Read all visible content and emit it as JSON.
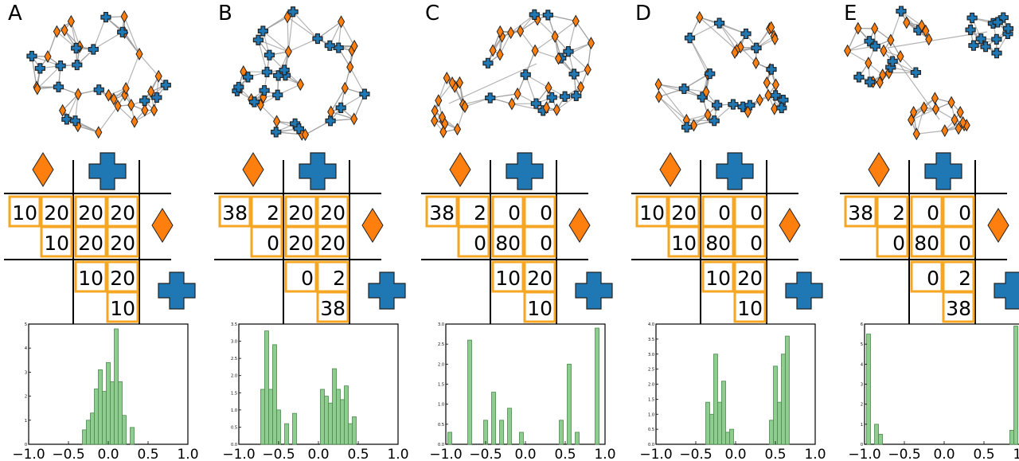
{
  "colors": {
    "orange": "#ff7f0e",
    "blue": "#1f77b4",
    "cell_border": "#f5a623",
    "hist_fill": "#8fcc8f",
    "hist_edge": "#4a8a4a",
    "edge": "#9a9a9a"
  },
  "icons": {
    "diamond": "orange-diamond-icon",
    "cross": "blue-cross-icon"
  },
  "panels": [
    {
      "label": "A",
      "matrix": {
        "dd": [
          "10",
          "20",
          "10"
        ],
        "dc": [
          "20",
          "20",
          "20",
          "20"
        ],
        "cc": [
          "10",
          "20",
          "10"
        ]
      },
      "network": {
        "groups": 1,
        "pattern": "mixed"
      },
      "hist": {
        "ymax": 5,
        "yticks": [
          "0",
          "1",
          "2",
          "3",
          "4",
          "5"
        ]
      }
    },
    {
      "label": "B",
      "matrix": {
        "dd": [
          "38",
          "2",
          "0"
        ],
        "dc": [
          "20",
          "20",
          "20",
          "20"
        ],
        "cc": [
          "0",
          "2",
          "38"
        ]
      },
      "network": {
        "groups": 1,
        "pattern": "mixed"
      },
      "hist": {
        "ymax": 3.5,
        "yticks": [
          "0.0",
          "0.5",
          "1.0",
          "1.5",
          "2.0",
          "2.5",
          "3.0",
          "3.5"
        ]
      }
    },
    {
      "label": "C",
      "matrix": {
        "dd": [
          "38",
          "2",
          "0"
        ],
        "dc": [
          "0",
          "0",
          "80",
          "0"
        ],
        "cc": [
          "10",
          "20",
          "10"
        ]
      },
      "network": {
        "groups": 2,
        "pattern": "split"
      },
      "hist": {
        "ymax": 3.0,
        "yticks": [
          "0.0",
          "0.5",
          "1.0",
          "1.5",
          "2.0",
          "2.5",
          "3.0"
        ]
      }
    },
    {
      "label": "D",
      "matrix": {
        "dd": [
          "10",
          "20",
          "10"
        ],
        "dc": [
          "0",
          "0",
          "80",
          "0"
        ],
        "cc": [
          "10",
          "20",
          "10"
        ]
      },
      "network": {
        "groups": 1,
        "pattern": "mixed"
      },
      "hist": {
        "ymax": 4.0,
        "yticks": [
          "0.0",
          "0.5",
          "1.0",
          "1.5",
          "2.0",
          "2.5",
          "3.0",
          "3.5",
          "4.0"
        ]
      }
    },
    {
      "label": "E",
      "matrix": {
        "dd": [
          "38",
          "2",
          "0"
        ],
        "dc": [
          "0",
          "0",
          "80",
          "0"
        ],
        "cc": [
          "0",
          "2",
          "38"
        ]
      },
      "network": {
        "groups": 3,
        "pattern": "split"
      },
      "hist": {
        "ymax": 6,
        "yticks": [
          "0",
          "1",
          "2",
          "3",
          "4",
          "5",
          "6"
        ]
      }
    }
  ],
  "chart_data": [
    {
      "type": "bar",
      "panel": "A",
      "xlim": [
        -1.0,
        1.0
      ],
      "ylim": [
        0,
        5
      ],
      "xticks": [
        "−1.0",
        "−0.5",
        "0.0",
        "0.5",
        "1.0"
      ],
      "x": [
        -0.3,
        -0.25,
        -0.2,
        -0.15,
        -0.1,
        -0.05,
        0.0,
        0.05,
        0.1,
        0.15,
        0.2,
        0.3
      ],
      "values": [
        0.6,
        1.0,
        1.3,
        2.3,
        3.1,
        2.2,
        3.4,
        2.6,
        4.8,
        2.6,
        1.2,
        0.7
      ]
    },
    {
      "type": "bar",
      "panel": "B",
      "xlim": [
        -1.0,
        1.0
      ],
      "ylim": [
        0,
        3.5
      ],
      "xticks": [
        "−1.0",
        "−0.5",
        "0.0",
        "0.5",
        "1.0"
      ],
      "x": [
        -0.7,
        -0.65,
        -0.6,
        -0.55,
        -0.5,
        -0.4,
        -0.3,
        0.05,
        0.1,
        0.15,
        0.2,
        0.25,
        0.3,
        0.35,
        0.4,
        0.45
      ],
      "values": [
        1.6,
        3.3,
        1.6,
        2.9,
        1.0,
        0.6,
        0.9,
        1.6,
        1.4,
        1.2,
        2.2,
        1.6,
        1.3,
        1.7,
        0.6,
        0.8
      ]
    },
    {
      "type": "bar",
      "panel": "C",
      "xlim": [
        -1.0,
        1.0
      ],
      "ylim": [
        0,
        3.0
      ],
      "xticks": [
        "−1.0",
        "−0.5",
        "0.0",
        "0.5",
        "1.0"
      ],
      "x": [
        -0.95,
        -0.7,
        -0.5,
        -0.4,
        -0.3,
        -0.2,
        -0.05,
        0.45,
        0.55,
        0.65,
        0.9
      ],
      "values": [
        0.3,
        2.6,
        0.6,
        1.3,
        0.6,
        0.9,
        0.3,
        0.6,
        2.0,
        0.3,
        2.9
      ]
    },
    {
      "type": "bar",
      "panel": "D",
      "xlim": [
        -1.0,
        1.0
      ],
      "ylim": [
        0,
        4.0
      ],
      "xticks": [
        "−1.0",
        "−0.5",
        "0.0",
        "0.5",
        "1.0"
      ],
      "x": [
        -0.35,
        -0.3,
        -0.25,
        -0.2,
        -0.15,
        -0.1,
        -0.05,
        0.45,
        0.5,
        0.55,
        0.6,
        0.65
      ],
      "values": [
        1.4,
        1.0,
        3.0,
        1.4,
        2.1,
        0.4,
        0.5,
        0.8,
        2.6,
        1.4,
        3.0,
        3.6
      ]
    },
    {
      "type": "bar",
      "panel": "E",
      "xlim": [
        -1.0,
        1.0
      ],
      "ylim": [
        0,
        6
      ],
      "xticks": [
        "−1.0",
        "−0.5",
        "0.0",
        "0.5",
        "1.0"
      ],
      "x": [
        -0.95,
        -0.85,
        -0.8,
        0.85,
        0.9
      ],
      "values": [
        5.5,
        1.0,
        0.5,
        0.7,
        5.9
      ]
    }
  ]
}
